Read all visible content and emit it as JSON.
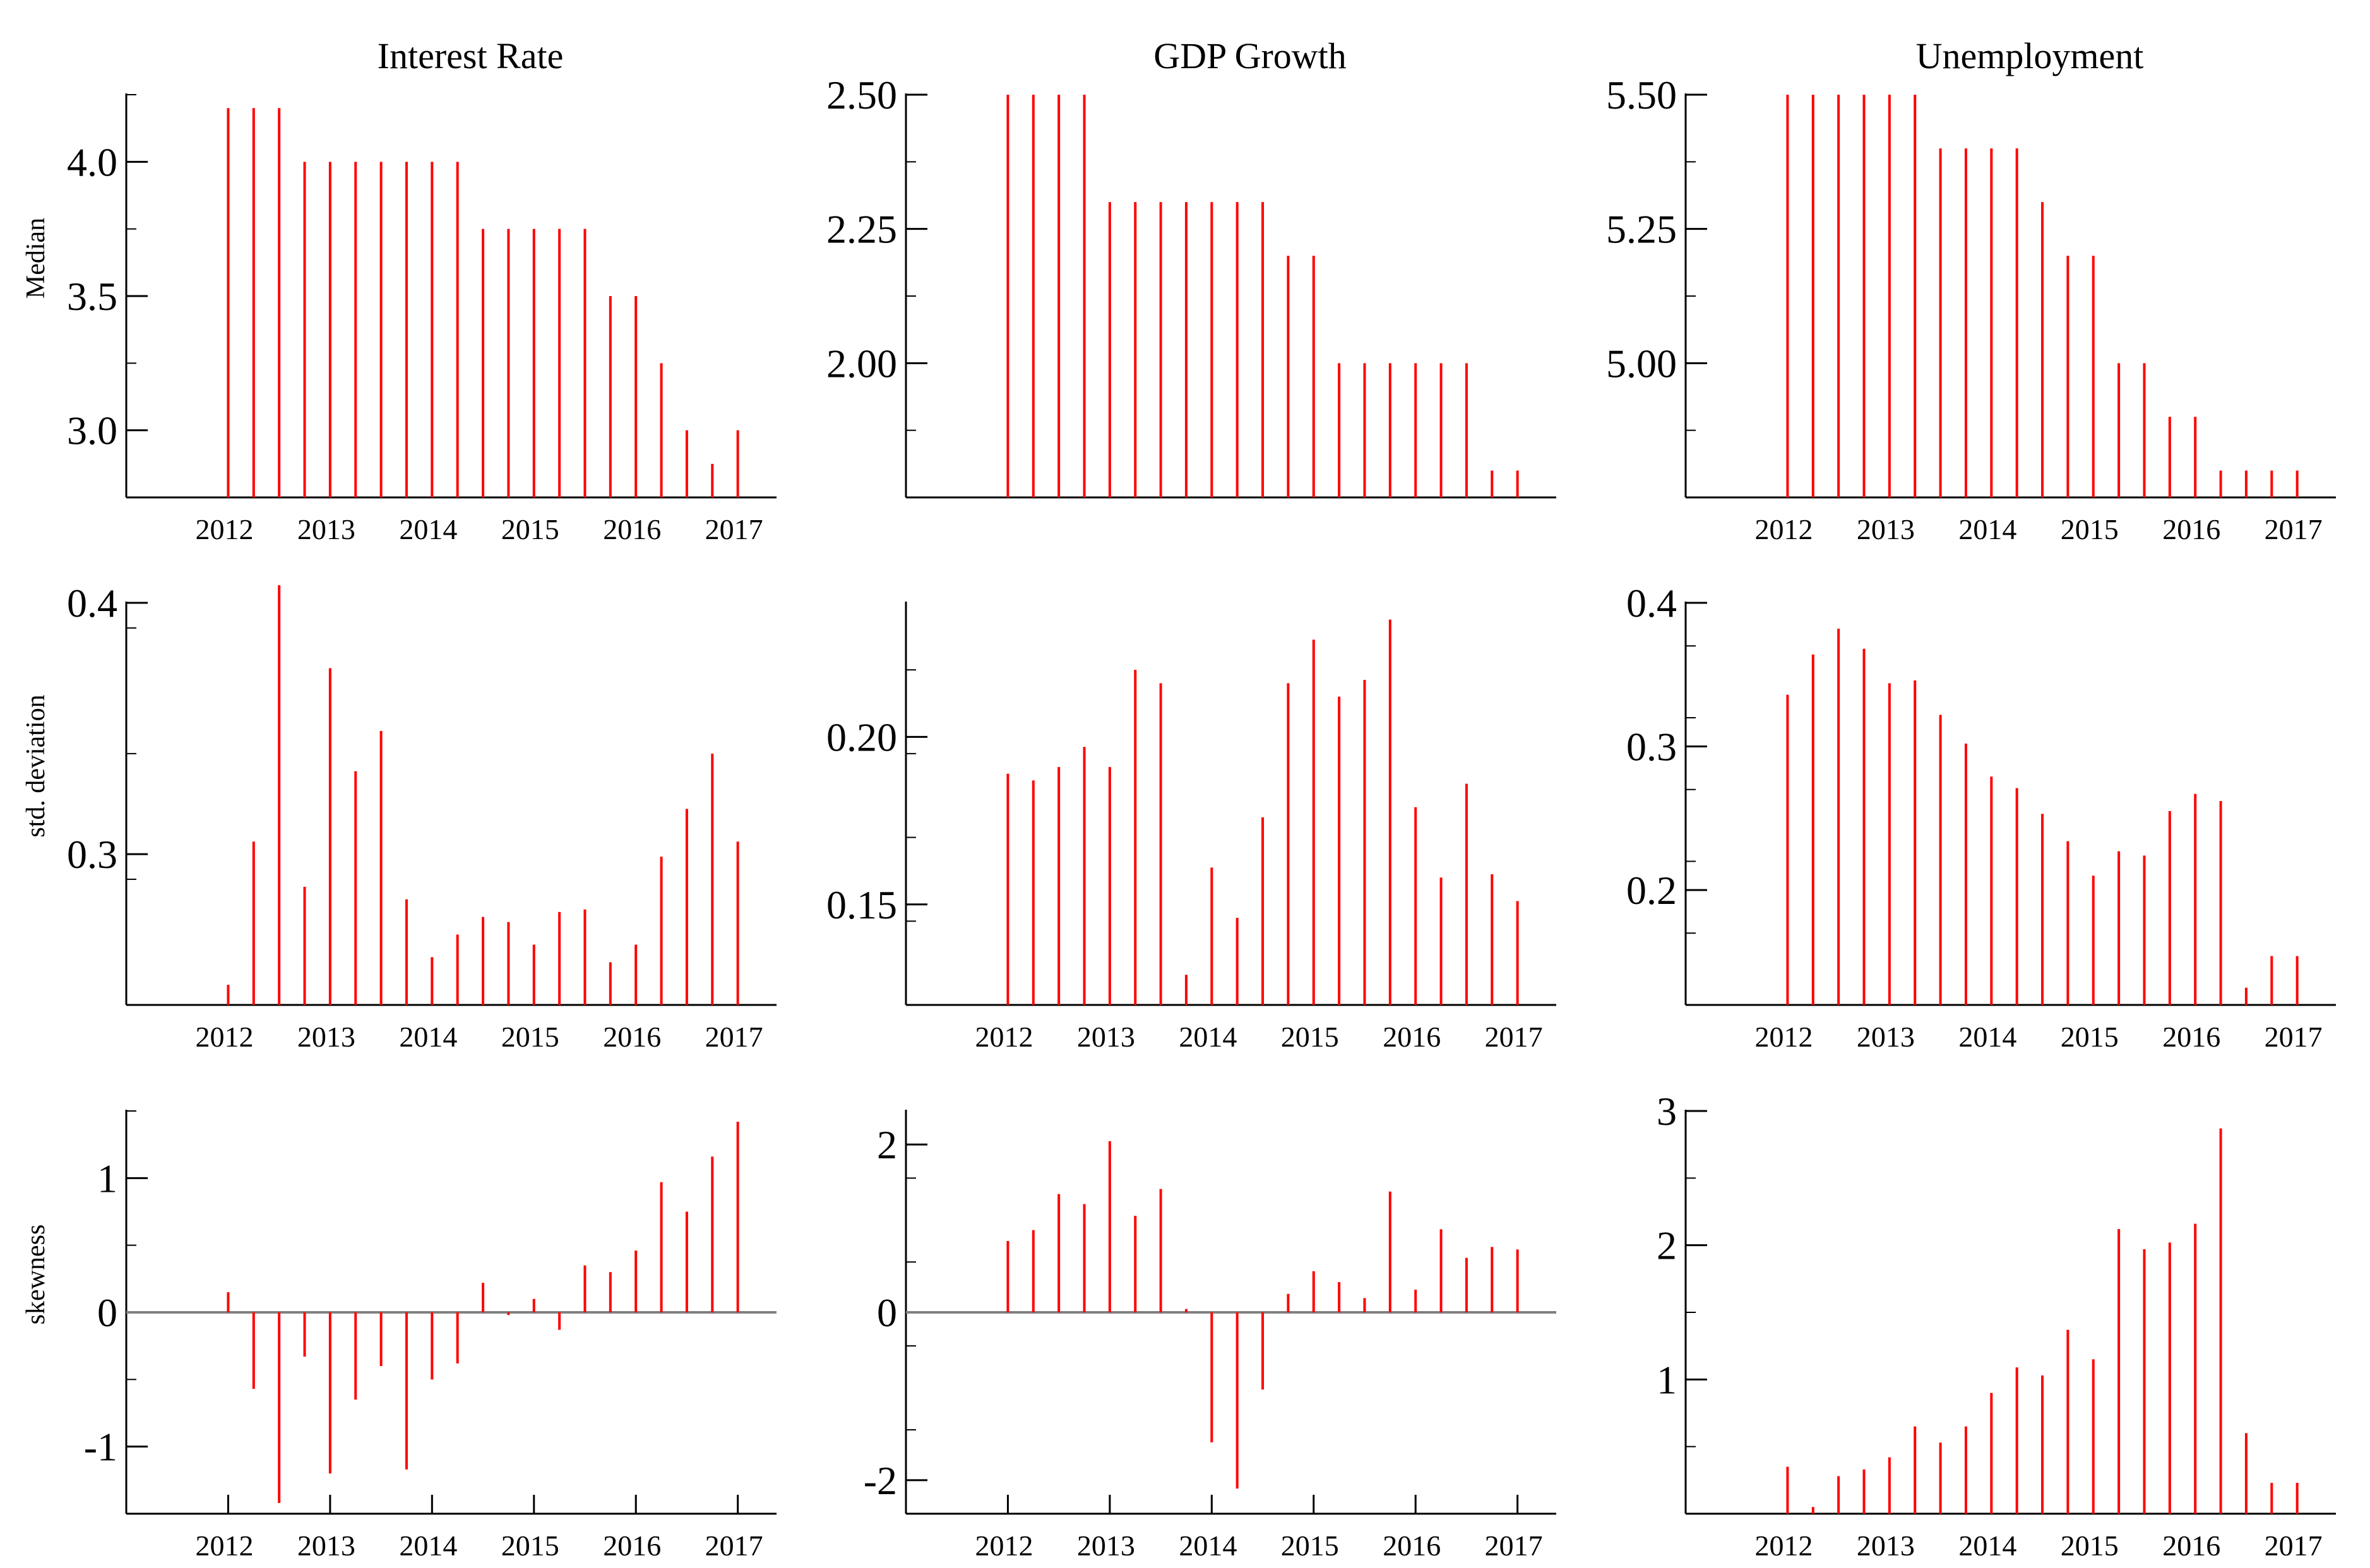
{
  "colors": {
    "bar": "#ff0000",
    "axis": "#000000",
    "zero_line": "#808080"
  },
  "panels": [
    {
      "title": "Interest Rate",
      "ylabel": "Median",
      "yticks": [
        "4.0",
        "3.5",
        "3.0"
      ],
      "ytick_values": [
        4.0,
        3.5,
        3.0
      ],
      "ylim": [
        2.75,
        4.25
      ],
      "baseline": 2.75,
      "zero_line": false,
      "date_labels": [
        "2012",
        "2013",
        "2014",
        "2015",
        "2016",
        "2017"
      ],
      "x": [
        2012.0,
        2012.25,
        2012.5,
        2012.75,
        2013.0,
        2013.25,
        2013.5,
        2013.75,
        2014.0,
        2014.25,
        2014.5,
        2014.75,
        2015.0,
        2015.25,
        2015.5,
        2015.75,
        2016.0,
        2016.25,
        2016.5,
        2016.75,
        2017.0
      ],
      "values": [
        4.2,
        4.2,
        4.2,
        4.0,
        4.0,
        4.0,
        4.0,
        4.0,
        4.0,
        4.0,
        3.75,
        3.75,
        3.75,
        3.75,
        3.75,
        3.5,
        3.5,
        3.25,
        3.0,
        2.875,
        3.0
      ]
    },
    {
      "title": "GDP Growth",
      "ylabel": "",
      "yticks": [
        "2.50",
        "2.25",
        "2.00"
      ],
      "ytick_values": [
        2.5,
        2.25,
        2.0
      ],
      "ylim": [
        1.75,
        2.5
      ],
      "baseline": 1.75,
      "zero_line": false,
      "date_labels": [],
      "x": [
        2012.0,
        2012.25,
        2012.5,
        2012.75,
        2013.0,
        2013.25,
        2013.5,
        2013.75,
        2014.0,
        2014.25,
        2014.5,
        2014.75,
        2015.0,
        2015.25,
        2015.5,
        2015.75,
        2016.0,
        2016.25,
        2016.5,
        2016.75,
        2017.0
      ],
      "values": [
        2.5,
        2.5,
        2.5,
        2.5,
        2.3,
        2.3,
        2.3,
        2.3,
        2.3,
        2.3,
        2.3,
        2.2,
        2.2,
        2.0,
        2.0,
        2.0,
        2.0,
        2.0,
        2.0,
        1.8,
        1.8
      ]
    },
    {
      "title": "Unemployment",
      "ylabel": "",
      "yticks": [
        "5.50",
        "5.25",
        "5.00"
      ],
      "ytick_values": [
        5.5,
        5.25,
        5.0
      ],
      "ylim": [
        4.75,
        5.5
      ],
      "baseline": 4.75,
      "zero_line": false,
      "date_labels": [
        "2012",
        "2013",
        "2014",
        "2015",
        "2016",
        "2017"
      ],
      "x": [
        2012.0,
        2012.25,
        2012.5,
        2012.75,
        2013.0,
        2013.25,
        2013.5,
        2013.75,
        2014.0,
        2014.25,
        2014.5,
        2014.75,
        2015.0,
        2015.25,
        2015.5,
        2015.75,
        2016.0,
        2016.25,
        2016.5,
        2016.75,
        2017.0
      ],
      "values": [
        5.5,
        5.5,
        5.5,
        5.5,
        5.5,
        5.5,
        5.4,
        5.4,
        5.4,
        5.4,
        5.3,
        5.2,
        5.2,
        5.0,
        5.0,
        4.9,
        4.9,
        4.8,
        4.8,
        4.8,
        4.8
      ]
    },
    {
      "title": "",
      "ylabel": "std. deviation",
      "yticks": [
        "0.4",
        "0.3"
      ],
      "ytick_values": [
        0.4,
        0.3
      ],
      "ylim": [
        0.24,
        0.4
      ],
      "baseline": 0.24,
      "zero_line": false,
      "date_labels": [
        "2012",
        "2013",
        "2014",
        "2015",
        "2016",
        "2017"
      ],
      "x": [
        2012.0,
        2012.25,
        2012.5,
        2012.75,
        2013.0,
        2013.25,
        2013.5,
        2013.75,
        2014.0,
        2014.25,
        2014.5,
        2014.75,
        2015.0,
        2015.25,
        2015.5,
        2015.75,
        2016.0,
        2016.25,
        2016.5,
        2016.75,
        2017.0
      ],
      "values": [
        0.248,
        0.305,
        0.407,
        0.287,
        0.374,
        0.333,
        0.349,
        0.282,
        0.259,
        0.268,
        0.275,
        0.273,
        0.264,
        0.277,
        0.278,
        0.257,
        0.264,
        0.299,
        0.318,
        0.34,
        0.305
      ]
    },
    {
      "title": "",
      "ylabel": "",
      "yticks": [
        "0.20",
        "0.15"
      ],
      "ytick_values": [
        0.2,
        0.15
      ],
      "ylim": [
        0.12,
        0.24
      ],
      "baseline": 0.12,
      "zero_line": false,
      "date_labels": [
        "2012",
        "2013",
        "2014",
        "2015",
        "2016",
        "2017"
      ],
      "x": [
        2012.0,
        2012.25,
        2012.5,
        2012.75,
        2013.0,
        2013.25,
        2013.5,
        2013.75,
        2014.0,
        2014.25,
        2014.5,
        2014.75,
        2015.0,
        2015.25,
        2015.5,
        2015.75,
        2016.0,
        2016.25,
        2016.5,
        2016.75,
        2017.0
      ],
      "values": [
        0.189,
        0.187,
        0.191,
        0.197,
        0.191,
        0.22,
        0.216,
        0.129,
        0.161,
        0.146,
        0.176,
        0.216,
        0.229,
        0.212,
        0.217,
        0.235,
        0.179,
        0.158,
        0.186,
        0.159,
        0.151
      ]
    },
    {
      "title": "",
      "ylabel": "",
      "yticks": [
        "0.4",
        "0.3",
        "0.2"
      ],
      "ytick_values": [
        0.4,
        0.3,
        0.2
      ],
      "ylim": [
        0.12,
        0.4
      ],
      "baseline": 0.12,
      "zero_line": false,
      "date_labels": [
        "2012",
        "2013",
        "2014",
        "2015",
        "2016",
        "2017"
      ],
      "x": [
        2012.0,
        2012.25,
        2012.5,
        2012.75,
        2013.0,
        2013.25,
        2013.5,
        2013.75,
        2014.0,
        2014.25,
        2014.5,
        2014.75,
        2015.0,
        2015.25,
        2015.5,
        2015.75,
        2016.0,
        2016.25,
        2016.5,
        2016.75,
        2017.0
      ],
      "values": [
        0.336,
        0.364,
        0.382,
        0.368,
        0.344,
        0.346,
        0.322,
        0.302,
        0.279,
        0.271,
        0.253,
        0.234,
        0.21,
        0.227,
        0.224,
        0.255,
        0.267,
        0.262,
        0.132,
        0.154,
        0.154
      ]
    },
    {
      "title": "",
      "ylabel": "skewness",
      "yticks": [
        "1",
        "0",
        "-1"
      ],
      "ytick_values": [
        1,
        0,
        -1
      ],
      "ylim": [
        -1.5,
        1.5
      ],
      "baseline": 0,
      "zero_line": true,
      "date_labels": [
        "2012",
        "2013",
        "2014",
        "2015",
        "2016",
        "2017"
      ],
      "x": [
        2012.0,
        2012.25,
        2012.5,
        2012.75,
        2013.0,
        2013.25,
        2013.5,
        2013.75,
        2014.0,
        2014.25,
        2014.5,
        2014.75,
        2015.0,
        2015.25,
        2015.5,
        2015.75,
        2016.0,
        2016.25,
        2016.5,
        2016.75,
        2017.0
      ],
      "values": [
        0.15,
        -0.57,
        -1.42,
        -0.33,
        -1.2,
        -0.65,
        -0.4,
        -1.17,
        -0.5,
        -0.38,
        0.22,
        -0.02,
        0.1,
        -0.13,
        0.35,
        0.3,
        0.46,
        0.97,
        0.75,
        1.16,
        1.42
      ]
    },
    {
      "title": "",
      "ylabel": "",
      "yticks": [
        "2",
        "0",
        "-2"
      ],
      "ytick_values": [
        2,
        0,
        -2
      ],
      "ylim": [
        -2.4,
        2.4
      ],
      "baseline": 0,
      "zero_line": true,
      "date_labels": [
        "2012",
        "2013",
        "2014",
        "2015",
        "2016",
        "2017"
      ],
      "x": [
        2012.0,
        2012.25,
        2012.5,
        2012.75,
        2013.0,
        2013.25,
        2013.5,
        2013.75,
        2014.0,
        2014.25,
        2014.5,
        2014.75,
        2015.0,
        2015.25,
        2015.5,
        2015.75,
        2016.0,
        2016.25,
        2016.5,
        2016.75,
        2017.0
      ],
      "values": [
        0.85,
        0.98,
        1.41,
        1.29,
        2.04,
        1.15,
        1.47,
        0.04,
        -1.55,
        -2.1,
        -0.92,
        0.22,
        0.49,
        0.36,
        0.17,
        1.44,
        0.27,
        0.99,
        0.65,
        0.78,
        0.75
      ]
    },
    {
      "title": "",
      "ylabel": "",
      "yticks": [
        "3",
        "2",
        "1"
      ],
      "ytick_values": [
        3,
        2,
        1
      ],
      "ylim": [
        0,
        3
      ],
      "baseline": 0,
      "zero_line": false,
      "date_labels": [
        "2012",
        "2013",
        "2014",
        "2015",
        "2016",
        "2017"
      ],
      "x": [
        2012.0,
        2012.25,
        2012.5,
        2012.75,
        2013.0,
        2013.25,
        2013.5,
        2013.75,
        2014.0,
        2014.25,
        2014.5,
        2014.75,
        2015.0,
        2015.25,
        2015.5,
        2015.75,
        2016.0,
        2016.25,
        2016.5,
        2016.75,
        2017.0
      ],
      "values": [
        0.35,
        0.05,
        0.28,
        0.33,
        0.42,
        0.65,
        0.53,
        0.65,
        0.9,
        1.09,
        1.03,
        1.37,
        1.15,
        2.12,
        1.97,
        2.02,
        2.16,
        2.87,
        0.6,
        0.23,
        0.23
      ]
    }
  ],
  "chart_data": [
    {
      "type": "bar",
      "title": "Interest Rate",
      "ylabel": "Median",
      "x_labels": [
        "2012",
        "2013",
        "2014",
        "2015",
        "2016",
        "2017"
      ],
      "x": [
        2012.0,
        2012.25,
        2012.5,
        2012.75,
        2013.0,
        2013.25,
        2013.5,
        2013.75,
        2014.0,
        2014.25,
        2014.5,
        2014.75,
        2015.0,
        2015.25,
        2015.5,
        2015.75,
        2016.0,
        2016.25,
        2016.5,
        2016.75,
        2017.0
      ],
      "values": [
        4.2,
        4.2,
        4.2,
        4.0,
        4.0,
        4.0,
        4.0,
        4.0,
        4.0,
        4.0,
        3.75,
        3.75,
        3.75,
        3.75,
        3.75,
        3.5,
        3.5,
        3.25,
        3.0,
        2.875,
        3.0
      ],
      "ylim": [
        2.75,
        4.25
      ]
    },
    {
      "type": "bar",
      "title": "GDP Growth",
      "x": [
        2012.0,
        2012.25,
        2012.5,
        2012.75,
        2013.0,
        2013.25,
        2013.5,
        2013.75,
        2014.0,
        2014.25,
        2014.5,
        2014.75,
        2015.0,
        2015.25,
        2015.5,
        2015.75,
        2016.0,
        2016.25,
        2016.5,
        2016.75,
        2017.0
      ],
      "values": [
        2.5,
        2.5,
        2.5,
        2.5,
        2.3,
        2.3,
        2.3,
        2.3,
        2.3,
        2.3,
        2.3,
        2.2,
        2.2,
        2.0,
        2.0,
        2.0,
        2.0,
        2.0,
        2.0,
        1.8,
        1.8
      ],
      "ylim": [
        1.75,
        2.5
      ]
    },
    {
      "type": "bar",
      "title": "Unemployment",
      "x_labels": [
        "2012",
        "2013",
        "2014",
        "2015",
        "2016",
        "2017"
      ],
      "x": [
        2012.0,
        2012.25,
        2012.5,
        2012.75,
        2013.0,
        2013.25,
        2013.5,
        2013.75,
        2014.0,
        2014.25,
        2014.5,
        2014.75,
        2015.0,
        2015.25,
        2015.5,
        2015.75,
        2016.0,
        2016.25,
        2016.5,
        2016.75,
        2017.0
      ],
      "values": [
        5.5,
        5.5,
        5.5,
        5.5,
        5.5,
        5.5,
        5.4,
        5.4,
        5.4,
        5.4,
        5.3,
        5.2,
        5.2,
        5.0,
        5.0,
        4.9,
        4.9,
        4.8,
        4.8,
        4.8,
        4.8
      ],
      "ylim": [
        4.75,
        5.5
      ]
    },
    {
      "type": "bar",
      "ylabel": "std. deviation",
      "x_labels": [
        "2012",
        "2013",
        "2014",
        "2015",
        "2016",
        "2017"
      ],
      "x": [
        2012.0,
        2012.25,
        2012.5,
        2012.75,
        2013.0,
        2013.25,
        2013.5,
        2013.75,
        2014.0,
        2014.25,
        2014.5,
        2014.75,
        2015.0,
        2015.25,
        2015.5,
        2015.75,
        2016.0,
        2016.25,
        2016.5,
        2016.75,
        2017.0
      ],
      "values": [
        0.248,
        0.305,
        0.407,
        0.287,
        0.374,
        0.333,
        0.349,
        0.282,
        0.259,
        0.268,
        0.275,
        0.273,
        0.264,
        0.277,
        0.278,
        0.257,
        0.264,
        0.299,
        0.318,
        0.34,
        0.305
      ],
      "ylim": [
        0.24,
        0.4
      ]
    },
    {
      "type": "bar",
      "x_labels": [
        "2012",
        "2013",
        "2014",
        "2015",
        "2016",
        "2017"
      ],
      "x": [
        2012.0,
        2012.25,
        2012.5,
        2012.75,
        2013.0,
        2013.25,
        2013.5,
        2013.75,
        2014.0,
        2014.25,
        2014.5,
        2014.75,
        2015.0,
        2015.25,
        2015.5,
        2015.75,
        2016.0,
        2016.25,
        2016.5,
        2016.75,
        2017.0
      ],
      "values": [
        0.189,
        0.187,
        0.191,
        0.197,
        0.191,
        0.22,
        0.216,
        0.129,
        0.161,
        0.146,
        0.176,
        0.216,
        0.229,
        0.212,
        0.217,
        0.235,
        0.179,
        0.158,
        0.186,
        0.159,
        0.151
      ],
      "ylim": [
        0.12,
        0.24
      ]
    },
    {
      "type": "bar",
      "x_labels": [
        "2012",
        "2013",
        "2014",
        "2015",
        "2016",
        "2017"
      ],
      "x": [
        2012.0,
        2012.25,
        2012.5,
        2012.75,
        2013.0,
        2013.25,
        2013.5,
        2013.75,
        2014.0,
        2014.25,
        2014.5,
        2014.75,
        2015.0,
        2015.25,
        2015.5,
        2015.75,
        2016.0,
        2016.25,
        2016.5,
        2016.75,
        2017.0
      ],
      "values": [
        0.336,
        0.364,
        0.382,
        0.368,
        0.344,
        0.346,
        0.322,
        0.302,
        0.279,
        0.271,
        0.253,
        0.234,
        0.21,
        0.227,
        0.224,
        0.255,
        0.267,
        0.262,
        0.132,
        0.154,
        0.154
      ],
      "ylim": [
        0.12,
        0.4
      ]
    },
    {
      "type": "bar",
      "ylabel": "skewness",
      "x_labels": [
        "2012",
        "2013",
        "2014",
        "2015",
        "2016",
        "2017"
      ],
      "x": [
        2012.0,
        2012.25,
        2012.5,
        2012.75,
        2013.0,
        2013.25,
        2013.5,
        2013.75,
        2014.0,
        2014.25,
        2014.5,
        2014.75,
        2015.0,
        2015.25,
        2015.5,
        2015.75,
        2016.0,
        2016.25,
        2016.5,
        2016.75,
        2017.0
      ],
      "values": [
        0.15,
        -0.57,
        -1.42,
        -0.33,
        -1.2,
        -0.65,
        -0.4,
        -1.17,
        -0.5,
        -0.38,
        0.22,
        -0.02,
        0.1,
        -0.13,
        0.35,
        0.3,
        0.46,
        0.97,
        0.75,
        1.16,
        1.42
      ],
      "ylim": [
        -1.5,
        1.5
      ]
    },
    {
      "type": "bar",
      "x_labels": [
        "2012",
        "2013",
        "2014",
        "2015",
        "2016",
        "2017"
      ],
      "x": [
        2012.0,
        2012.25,
        2012.5,
        2012.75,
        2013.0,
        2013.25,
        2013.5,
        2013.75,
        2014.0,
        2014.25,
        2014.5,
        2014.75,
        2015.0,
        2015.25,
        2015.5,
        2015.75,
        2016.0,
        2016.25,
        2016.5,
        2016.75,
        2017.0
      ],
      "values": [
        0.85,
        0.98,
        1.41,
        1.29,
        2.04,
        1.15,
        1.47,
        0.04,
        -1.55,
        -2.1,
        -0.92,
        0.22,
        0.49,
        0.36,
        0.17,
        1.44,
        0.27,
        0.99,
        0.65,
        0.78,
        0.75
      ],
      "ylim": [
        -2.4,
        2.4
      ]
    },
    {
      "type": "bar",
      "x_labels": [
        "2012",
        "2013",
        "2014",
        "2015",
        "2016",
        "2017"
      ],
      "x": [
        2012.0,
        2012.25,
        2012.5,
        2012.75,
        2013.0,
        2013.25,
        2013.5,
        2013.75,
        2014.0,
        2014.25,
        2014.5,
        2014.75,
        2015.0,
        2015.25,
        2015.5,
        2015.75,
        2016.0,
        2016.25,
        2016.5,
        2016.75,
        2017.0
      ],
      "values": [
        0.35,
        0.05,
        0.28,
        0.33,
        0.42,
        0.65,
        0.53,
        0.65,
        0.9,
        1.09,
        1.03,
        1.37,
        1.15,
        2.12,
        1.97,
        2.02,
        2.16,
        2.87,
        0.6,
        0.23,
        0.23
      ],
      "ylim": [
        0,
        3
      ]
    }
  ]
}
